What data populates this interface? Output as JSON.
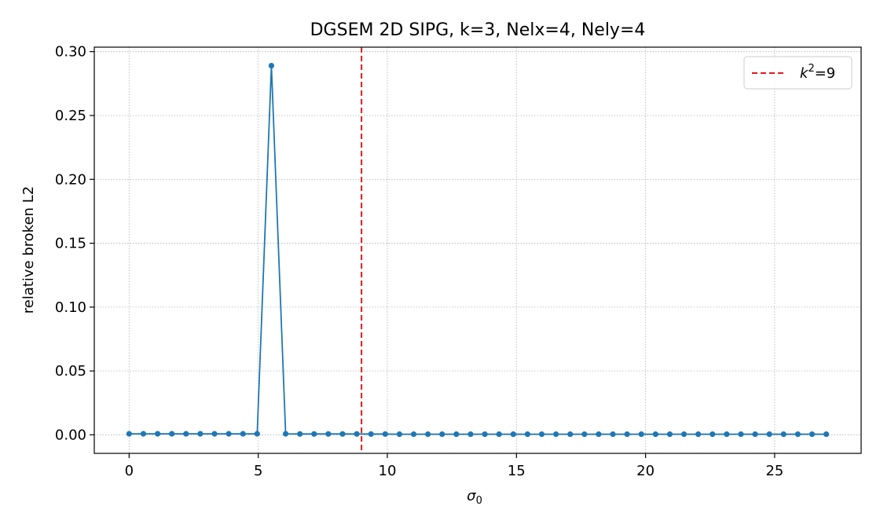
{
  "chart_data": {
    "type": "line",
    "title": "DGSEM 2D SIPG, k=3, Nelx=4, Nely=4",
    "xlabel": "σ",
    "xlabel_subscript": "0",
    "ylabel": "relative broken L2",
    "xlim": [
      -1.35,
      28.35
    ],
    "ylim": [
      -0.0145,
      0.3035
    ],
    "xticks": [
      0,
      5,
      10,
      15,
      20,
      25
    ],
    "yticks": [
      0.0,
      0.05,
      0.1,
      0.15,
      0.2,
      0.25,
      0.3
    ],
    "ytick_labels": [
      "0.00",
      "0.05",
      "0.10",
      "0.15",
      "0.20",
      "0.25",
      "0.30"
    ],
    "grid": true,
    "legend_position": "top-right",
    "series": [
      {
        "name": "",
        "color": "#1f77b4",
        "marker": "circle",
        "x": [
          0,
          0.551,
          1.102,
          1.653,
          2.204,
          2.755,
          3.306,
          3.857,
          4.408,
          4.959,
          5.51,
          6.061,
          6.612,
          7.163,
          7.714,
          8.265,
          8.816,
          9.367,
          9.918,
          10.469,
          11.02,
          11.571,
          12.122,
          12.673,
          13.224,
          13.776,
          14.327,
          14.878,
          15.429,
          15.98,
          16.531,
          17.082,
          17.633,
          18.184,
          18.735,
          19.286,
          19.837,
          20.388,
          20.939,
          21.49,
          22.041,
          22.592,
          23.143,
          23.694,
          24.245,
          24.796,
          25.347,
          25.898,
          26.449,
          27.0
        ],
        "y": [
          0.0008,
          0.0008,
          0.0008,
          0.0008,
          0.0008,
          0.0008,
          0.0008,
          0.0008,
          0.0008,
          0.0008,
          0.289,
          0.0008,
          0.0007,
          0.0007,
          0.0007,
          0.0007,
          0.0007,
          0.0006,
          0.0006,
          0.0005,
          0.0005,
          0.0005,
          0.0005,
          0.0005,
          0.0005,
          0.0005,
          0.0005,
          0.0005,
          0.0005,
          0.0005,
          0.0005,
          0.0005,
          0.0005,
          0.0005,
          0.0005,
          0.0005,
          0.0005,
          0.0005,
          0.0005,
          0.0005,
          0.0005,
          0.0005,
          0.0005,
          0.0005,
          0.0005,
          0.0005,
          0.0005,
          0.0005,
          0.0005,
          0.0005
        ]
      }
    ],
    "vline": {
      "x": 9,
      "color": "#e31a1c",
      "style": "dashed",
      "legend_var": "k",
      "legend_sup": "2",
      "legend_rest": "=9"
    }
  }
}
